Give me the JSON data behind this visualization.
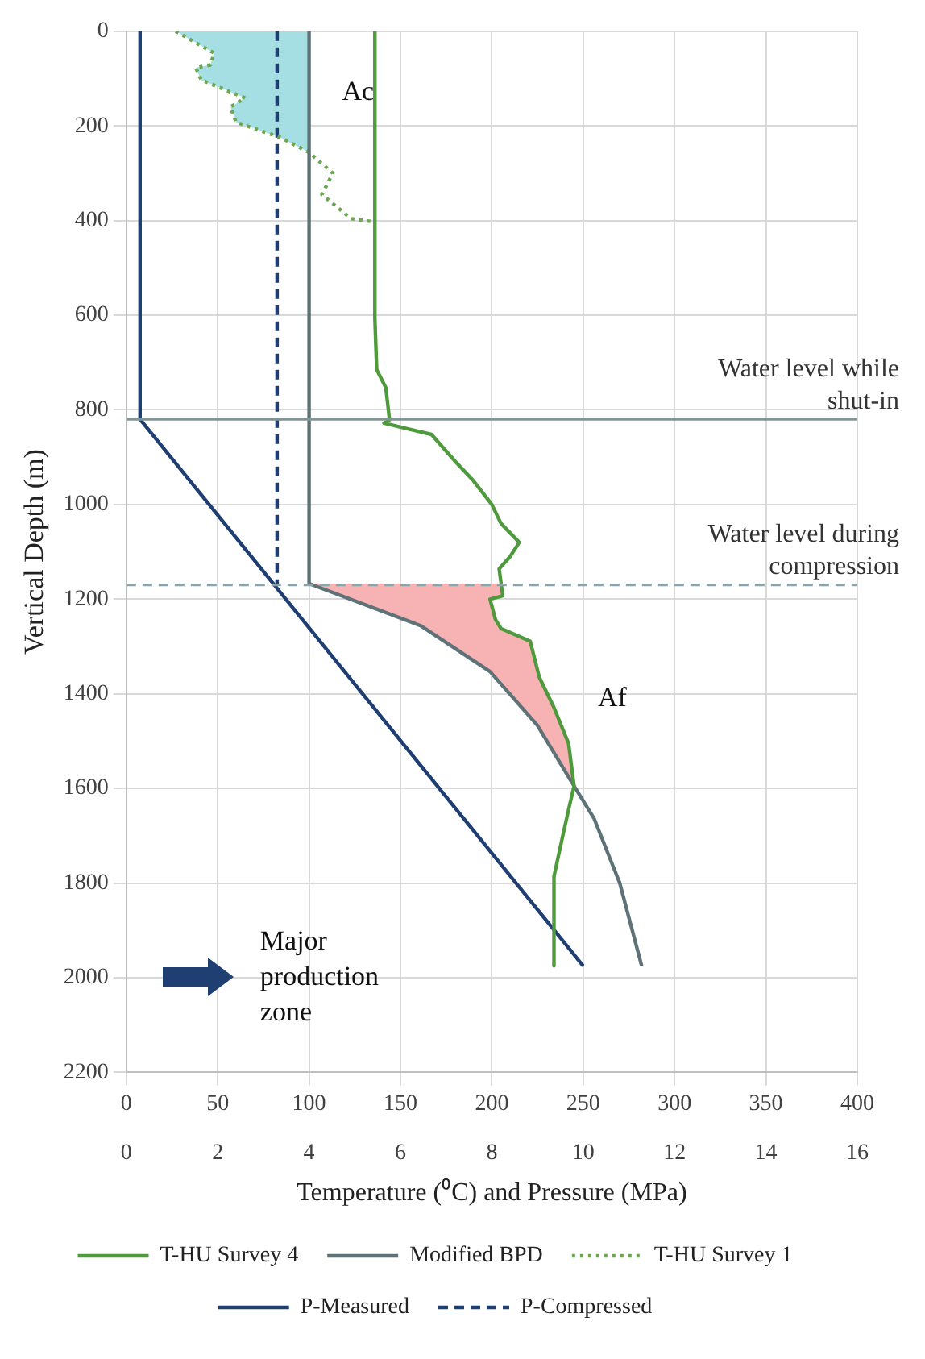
{
  "chart_data": {
    "type": "line",
    "xlabel": "Temperature (⁰C) and Pressure (MPa)",
    "ylabel": "Vertical Depth (m)",
    "xlim": [
      0,
      400
    ],
    "xticks": [
      0,
      50,
      100,
      150,
      200,
      250,
      300,
      350,
      400
    ],
    "x2lim": [
      0,
      16
    ],
    "x2ticks": [
      0,
      2,
      4,
      6,
      8,
      10,
      12,
      14,
      16
    ],
    "ylim": [
      2200,
      0
    ],
    "yticks": [
      0,
      200,
      400,
      600,
      800,
      1000,
      1200,
      1400,
      1600,
      1800,
      2000,
      2200
    ],
    "grid": true,
    "legend": "bottom",
    "marker": "none",
    "series": [
      {
        "name": "T-HU Survey 4",
        "color": "#4e9a3c",
        "line_style": "solid",
        "x": [
          136,
          136,
          137,
          142,
          144,
          141,
          167,
          180,
          190,
          200,
          205,
          215,
          210,
          204,
          206,
          199,
          202,
          205,
          221,
          226,
          234,
          242,
          245,
          242,
          239,
          234,
          234
        ],
        "values": [
          0,
          607,
          715,
          753,
          821,
          828,
          852,
          909,
          950,
          1000,
          1040,
          1080,
          1110,
          1136,
          1193,
          1200,
          1243,
          1262,
          1289,
          1365,
          1429,
          1505,
          1595,
          1645,
          1697,
          1786,
          1975
        ]
      },
      {
        "name": "Modified BPD",
        "color": "#5f7278",
        "line_style": "solid",
        "x": [
          100,
          100,
          161,
          199,
          225,
          245,
          256,
          270,
          282
        ],
        "values": [
          0,
          1167,
          1256,
          1353,
          1467,
          1595,
          1664,
          1800,
          1975
        ]
      },
      {
        "name": "T-HU Survey 1",
        "color": "#6aa84f",
        "line_style": "dotted",
        "x": [
          27,
          48,
          46,
          38,
          41,
          65,
          57,
          60,
          84,
          100,
          113,
          107,
          123,
          136
        ],
        "values": [
          0,
          46,
          71,
          77,
          103,
          141,
          160,
          192,
          224,
          256,
          300,
          345,
          396,
          403
        ]
      },
      {
        "name": "P-Measured",
        "color": "#1f3f73",
        "line_style": "solid",
        "axis": "x2",
        "x": [
          0.3,
          0.3,
          10
        ],
        "values": [
          0,
          820,
          1975
        ]
      },
      {
        "name": "P-Compressed",
        "color": "#1f3f73",
        "line_style": "dashed",
        "axis": "x2",
        "x": [
          3.3,
          3.3
        ],
        "values": [
          0,
          1170
        ]
      },
      {
        "type": "area",
        "color": "#a5dfe4",
        "x": [
          27,
          48,
          46,
          38,
          41,
          65,
          57,
          60,
          84,
          100,
          100
        ],
        "values": [
          0,
          46,
          71,
          77,
          103,
          141,
          160,
          192,
          224,
          256,
          0
        ]
      },
      {
        "type": "area",
        "color": "#f7b3b3",
        "x": [
          100,
          161,
          199,
          225,
          245,
          242,
          234,
          226,
          221,
          205,
          202,
          199,
          206,
          205
        ],
        "values": [
          1167,
          1256,
          1353,
          1467,
          1595,
          1505,
          1429,
          1365,
          1289,
          1262,
          1243,
          1200,
          1193,
          1167
        ]
      }
    ],
    "ref_lines": [
      {
        "axis": "y",
        "value": 820,
        "label": "Water level while shut-in",
        "color": "#7f9696",
        "line_style": "solid"
      },
      {
        "axis": "y",
        "value": 1170,
        "label": "Water level during compression",
        "color": "#8fa3a8",
        "line_style": "dashed"
      }
    ],
    "annotations": [
      "Ac",
      "Af",
      "Major production zone"
    ]
  }
}
